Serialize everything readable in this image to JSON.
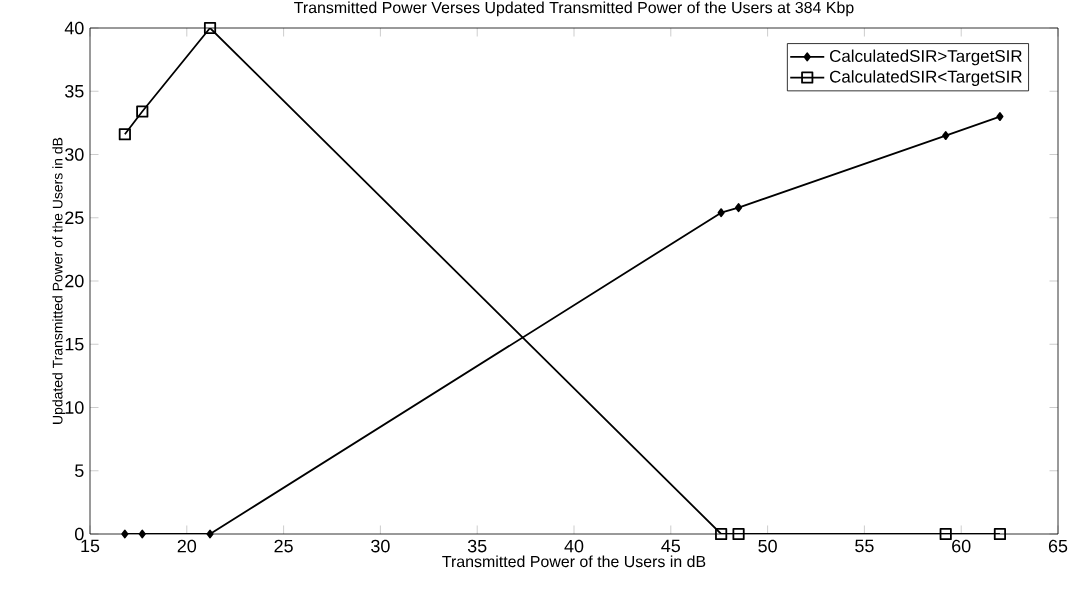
{
  "chart_data": {
    "type": "line",
    "title": "Transmitted Power Verses Updated Transmitted Power of the Users at 384 Kbp",
    "xlabel": "Transmitted Power of the Users in dB",
    "ylabel": "Updated Transmitted Power of the Users in dB",
    "x": [
      16.8,
      17.7,
      21.2,
      47.6,
      48.5,
      59.2,
      62.0
    ],
    "series": [
      {
        "name": "CalculatedSIR>TargetSIR",
        "color": "#000000",
        "marker": "diamond",
        "values": [
          0,
          0,
          0,
          25.4,
          25.8,
          31.5,
          33.0
        ]
      },
      {
        "name": "CalculatedSIR<TargetSIR",
        "color": "#000000",
        "marker": "square",
        "values": [
          31.6,
          33.4,
          40,
          0,
          0,
          0,
          0
        ]
      }
    ],
    "xlim": [
      15,
      65
    ],
    "xticks": [
      15,
      20,
      25,
      30,
      35,
      40,
      45,
      50,
      55,
      60,
      65
    ],
    "ylim": [
      0,
      40
    ],
    "yticks": [
      0,
      5,
      10,
      15,
      20,
      25,
      30,
      35,
      40
    ],
    "grid": false,
    "legend": "top right",
    "line_style": "solid"
  }
}
